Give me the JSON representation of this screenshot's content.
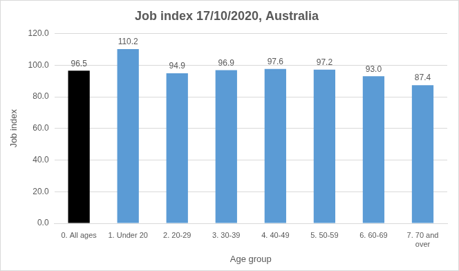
{
  "chart_data": {
    "type": "bar",
    "title": "Job index 17/10/2020, Australia",
    "x_label": "Age group",
    "y_label": "Job index",
    "categories": [
      "0. All ages",
      "1. Under 20",
      "2. 20-29",
      "3. 30-39",
      "4. 40-49",
      "5. 50-59",
      "6. 60-69",
      "7. 70 and over"
    ],
    "values": [
      96.5,
      110.2,
      94.9,
      96.9,
      97.6,
      97.2,
      93.0,
      87.4
    ],
    "value_labels": [
      "96.5",
      "110.2",
      "94.9",
      "96.9",
      "97.6",
      "97.2",
      "93.0",
      "87.4"
    ],
    "colors": [
      "#000000",
      "#5b9bd5",
      "#5b9bd5",
      "#5b9bd5",
      "#5b9bd5",
      "#5b9bd5",
      "#5b9bd5",
      "#5b9bd5"
    ],
    "data_labels": true,
    "ylim": [
      0,
      120
    ],
    "yticks": [
      {
        "value": 0,
        "label": "0.0"
      },
      {
        "value": 20,
        "label": "20.0"
      },
      {
        "value": 40,
        "label": "40.0"
      },
      {
        "value": 60,
        "label": "60.0"
      },
      {
        "value": 80,
        "label": "80.0"
      },
      {
        "value": 100,
        "label": "100.0"
      },
      {
        "value": 120,
        "label": "120.0"
      }
    ],
    "grid": true
  }
}
